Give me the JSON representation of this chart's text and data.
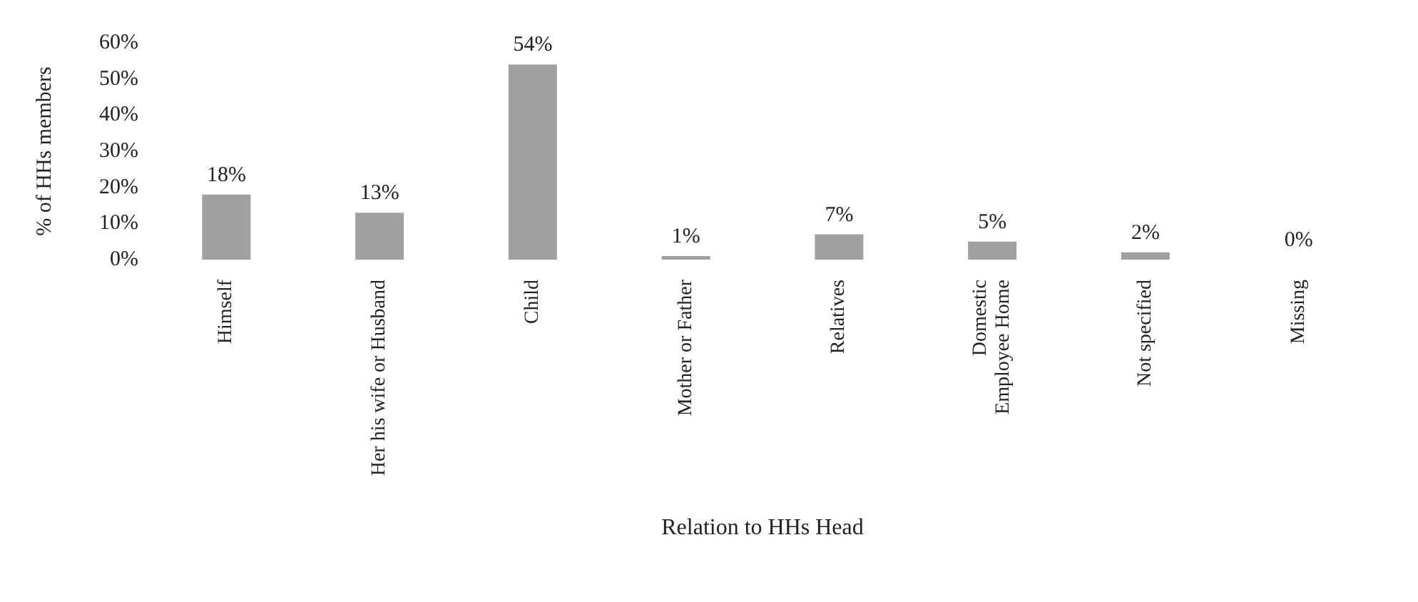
{
  "chart_data": {
    "type": "bar",
    "xlabel": "Relation to HHs Head",
    "ylabel": "% of HHs members",
    "categories": [
      "Himself",
      "Her his wife or Husband",
      "Child",
      "Mother or Father",
      "Relatives",
      "Domestic\nEmployee Home",
      "Not specified",
      "Missing"
    ],
    "values": [
      18,
      13,
      54,
      1,
      7,
      5,
      2,
      0
    ],
    "color": "#a0a0a0",
    "value_labels": [
      "18%",
      "13%",
      "54%",
      "1%",
      "7%",
      "5%",
      "2%",
      "0%"
    ],
    "ylim": [
      0,
      60
    ],
    "yticks": [
      {
        "value": 0,
        "label": "0%"
      },
      {
        "value": 10,
        "label": "10%"
      },
      {
        "value": 20,
        "label": "20%"
      },
      {
        "value": 30,
        "label": "30%"
      },
      {
        "value": 40,
        "label": "40%"
      },
      {
        "value": 50,
        "label": "50%"
      },
      {
        "value": 60,
        "label": "60%"
      }
    ],
    "grid": false
  }
}
